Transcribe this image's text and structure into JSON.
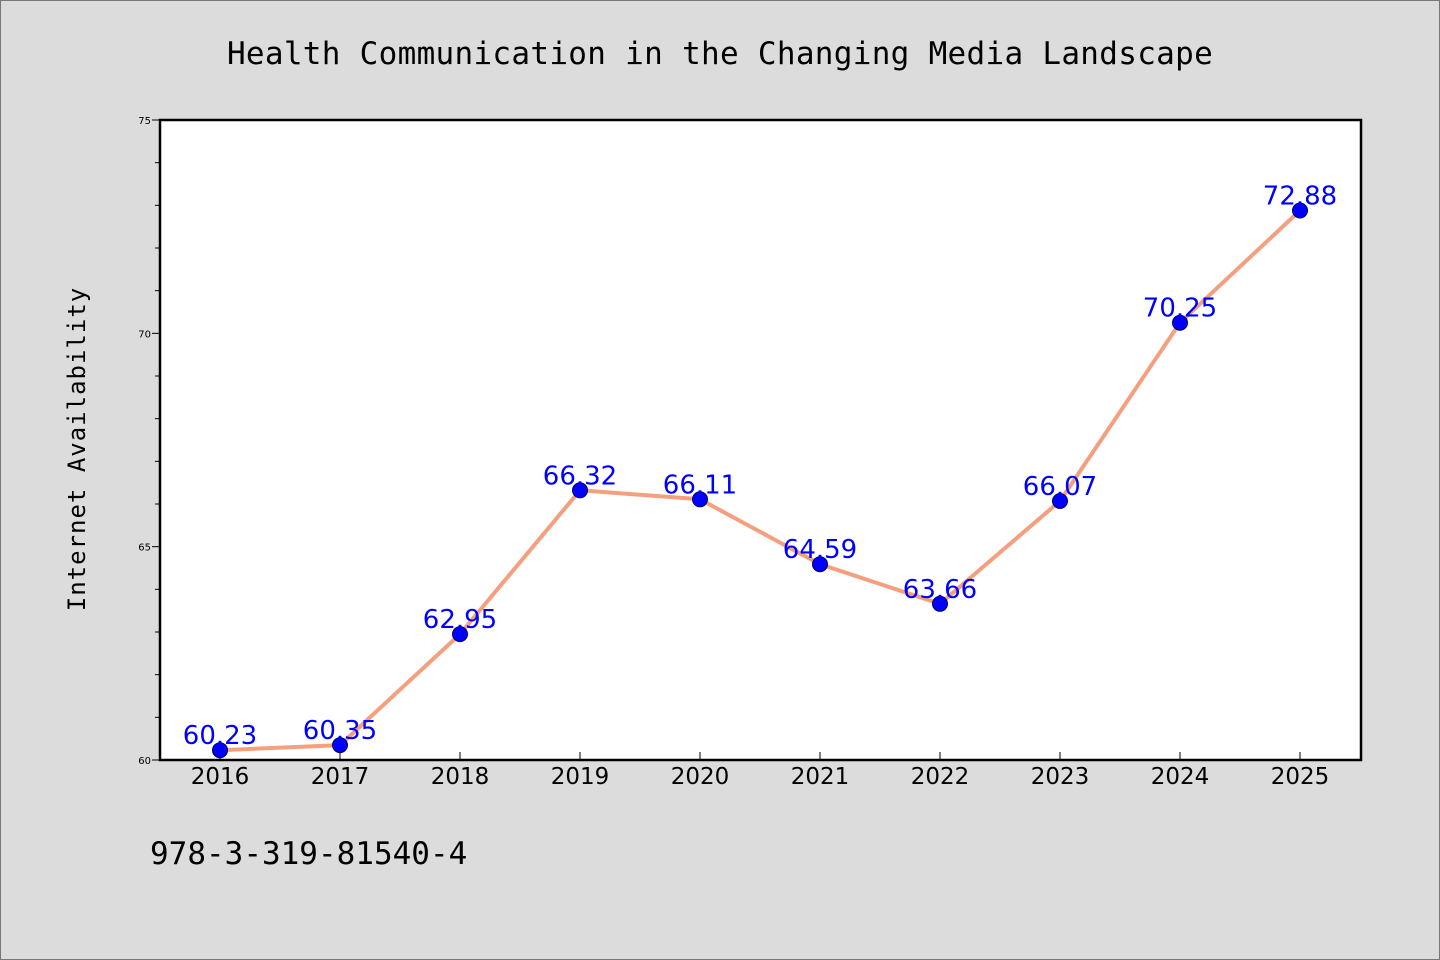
{
  "chart_data": {
    "type": "line",
    "title": "Health Communication in the Changing Media Landscape",
    "xlabel": "",
    "ylabel": "Internet Availability",
    "categories": [
      "2016",
      "2017",
      "2018",
      "2019",
      "2020",
      "2021",
      "2022",
      "2023",
      "2024",
      "2025"
    ],
    "series": [
      {
        "values": [
          60.23,
          60.35,
          62.95,
          66.32,
          66.11,
          64.59,
          63.66,
          66.07,
          70.25,
          72.88
        ],
        "data_labels": [
          "60.23",
          "60.35",
          "62.95",
          "66.32",
          "66.11",
          "64.59",
          "63.66",
          "66.07",
          "70.25",
          "72.88"
        ],
        "line_color": "#f4a07f",
        "marker_color": "#0000ff"
      }
    ],
    "ylim": [
      60,
      75
    ],
    "yticks": [
      "60",
      "65",
      "70",
      "75"
    ],
    "grid": false,
    "legend": "none"
  },
  "footer": {
    "isbn": "978-3-319-81540-4"
  },
  "colors": {
    "background": "#dcdcdc",
    "plot_background": "#ffffff",
    "line": "#f4a07f",
    "marker": "#0000ff",
    "data_label": "#0000ff"
  }
}
